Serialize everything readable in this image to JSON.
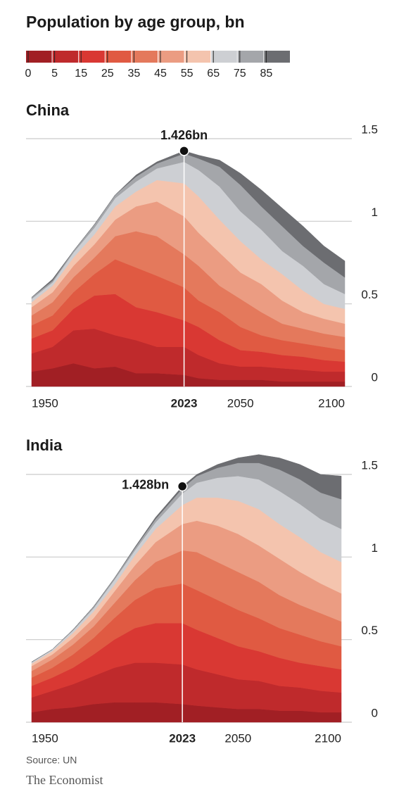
{
  "title": "Population by age group, bn",
  "legend_ticks": [
    0,
    5,
    15,
    25,
    35,
    45,
    55,
    65,
    75,
    85
  ],
  "source": "Source: UN",
  "brand": "The Economist",
  "chart_data": [
    {
      "type": "stacked-area",
      "title": "China",
      "x": [
        1950,
        1960,
        1970,
        1980,
        1990,
        2000,
        2010,
        2023,
        2030,
        2040,
        2050,
        2060,
        2070,
        2080,
        2090,
        2100
      ],
      "xlim": [
        1950,
        2100
      ],
      "xticks": [
        1950,
        2023,
        2050,
        2100
      ],
      "ylim": [
        0,
        1.5
      ],
      "yticks": [
        0,
        0.5,
        1.0,
        1.5
      ],
      "grid": true,
      "annotation": {
        "x": 2023,
        "value": 1.426,
        "label": "1.426bn"
      },
      "series": [
        {
          "color": "#a11f24",
          "values": [
            0.09,
            0.11,
            0.14,
            0.11,
            0.12,
            0.08,
            0.08,
            0.07,
            0.05,
            0.04,
            0.04,
            0.04,
            0.03,
            0.03,
            0.03,
            0.03
          ]
        },
        {
          "color": "#bf2a2c",
          "values": [
            0.11,
            0.13,
            0.2,
            0.24,
            0.19,
            0.2,
            0.16,
            0.17,
            0.14,
            0.1,
            0.08,
            0.08,
            0.08,
            0.07,
            0.06,
            0.06
          ]
        },
        {
          "color": "#d93833",
          "values": [
            0.09,
            0.1,
            0.13,
            0.2,
            0.25,
            0.2,
            0.21,
            0.16,
            0.17,
            0.14,
            0.1,
            0.09,
            0.08,
            0.08,
            0.07,
            0.06
          ]
        },
        {
          "color": "#e05a42",
          "values": [
            0.08,
            0.09,
            0.1,
            0.13,
            0.21,
            0.24,
            0.22,
            0.2,
            0.16,
            0.17,
            0.14,
            0.1,
            0.09,
            0.08,
            0.08,
            0.07
          ]
        },
        {
          "color": "#e4795c",
          "values": [
            0.06,
            0.08,
            0.09,
            0.1,
            0.14,
            0.22,
            0.24,
            0.2,
            0.21,
            0.16,
            0.17,
            0.14,
            0.1,
            0.09,
            0.08,
            0.08
          ]
        },
        {
          "color": "#eb9c82",
          "values": [
            0.05,
            0.06,
            0.07,
            0.08,
            0.1,
            0.15,
            0.21,
            0.23,
            0.2,
            0.2,
            0.16,
            0.17,
            0.14,
            0.1,
            0.09,
            0.08
          ]
        },
        {
          "color": "#f4c4ae",
          "values": [
            0.03,
            0.04,
            0.05,
            0.06,
            0.08,
            0.09,
            0.13,
            0.2,
            0.22,
            0.2,
            0.19,
            0.15,
            0.16,
            0.13,
            0.09,
            0.09
          ]
        },
        {
          "color": "#cdcfd3",
          "values": [
            0.02,
            0.02,
            0.03,
            0.04,
            0.05,
            0.06,
            0.07,
            0.13,
            0.16,
            0.2,
            0.18,
            0.18,
            0.14,
            0.15,
            0.12,
            0.09
          ]
        },
        {
          "color": "#a4a6aa",
          "values": [
            0.01,
            0.01,
            0.01,
            0.02,
            0.02,
            0.03,
            0.03,
            0.05,
            0.07,
            0.12,
            0.16,
            0.14,
            0.15,
            0.12,
            0.13,
            0.1
          ]
        },
        {
          "color": "#6c6d71",
          "values": [
            0.0,
            0.01,
            0.0,
            0.0,
            0.0,
            0.01,
            0.01,
            0.016,
            0.02,
            0.04,
            0.07,
            0.1,
            0.11,
            0.12,
            0.1,
            0.1
          ]
        }
      ]
    },
    {
      "type": "stacked-area",
      "title": "India",
      "x": [
        1950,
        1960,
        1970,
        1980,
        1990,
        2000,
        2010,
        2023,
        2030,
        2040,
        2050,
        2060,
        2070,
        2080,
        2090,
        2100
      ],
      "xlim": [
        1950,
        2100
      ],
      "xticks": [
        1950,
        2023,
        2050,
        2100
      ],
      "ylim": [
        0,
        1.5
      ],
      "yticks": [
        0,
        0.5,
        1.0,
        1.5
      ],
      "grid": true,
      "annotation": {
        "x": 2023,
        "value": 1.428,
        "label": "1.428bn"
      },
      "series": [
        {
          "color": "#a11f24",
          "values": [
            0.06,
            0.08,
            0.09,
            0.11,
            0.12,
            0.12,
            0.12,
            0.11,
            0.1,
            0.09,
            0.08,
            0.08,
            0.07,
            0.07,
            0.06,
            0.06
          ]
        },
        {
          "color": "#bf2a2c",
          "values": [
            0.09,
            0.11,
            0.14,
            0.17,
            0.21,
            0.24,
            0.24,
            0.24,
            0.22,
            0.2,
            0.18,
            0.17,
            0.15,
            0.14,
            0.13,
            0.12
          ]
        },
        {
          "color": "#d93833",
          "values": [
            0.07,
            0.08,
            0.1,
            0.13,
            0.17,
            0.21,
            0.24,
            0.25,
            0.24,
            0.22,
            0.2,
            0.18,
            0.17,
            0.15,
            0.15,
            0.14
          ]
        },
        {
          "color": "#e05a42",
          "values": [
            0.05,
            0.06,
            0.08,
            0.1,
            0.13,
            0.17,
            0.21,
            0.24,
            0.24,
            0.23,
            0.22,
            0.2,
            0.18,
            0.17,
            0.15,
            0.14
          ]
        },
        {
          "color": "#e4795c",
          "values": [
            0.04,
            0.05,
            0.06,
            0.07,
            0.09,
            0.12,
            0.16,
            0.2,
            0.23,
            0.23,
            0.23,
            0.22,
            0.2,
            0.18,
            0.17,
            0.15
          ]
        },
        {
          "color": "#eb9c82",
          "values": [
            0.03,
            0.03,
            0.04,
            0.05,
            0.07,
            0.09,
            0.12,
            0.16,
            0.19,
            0.22,
            0.23,
            0.22,
            0.22,
            0.2,
            0.18,
            0.17
          ]
        },
        {
          "color": "#f4c4ae",
          "values": [
            0.015,
            0.02,
            0.03,
            0.04,
            0.04,
            0.06,
            0.08,
            0.115,
            0.14,
            0.17,
            0.2,
            0.22,
            0.21,
            0.21,
            0.19,
            0.19
          ]
        },
        {
          "color": "#cdcfd3",
          "values": [
            0.008,
            0.01,
            0.015,
            0.02,
            0.03,
            0.03,
            0.04,
            0.07,
            0.09,
            0.12,
            0.15,
            0.18,
            0.2,
            0.2,
            0.2,
            0.2
          ]
        },
        {
          "color": "#a4a6aa",
          "values": [
            0.002,
            0.0,
            0.005,
            0.01,
            0.01,
            0.015,
            0.02,
            0.03,
            0.04,
            0.06,
            0.08,
            0.1,
            0.13,
            0.15,
            0.16,
            0.18
          ]
        },
        {
          "color": "#6c6d71",
          "values": [
            0.0,
            0.0,
            0.0,
            0.0,
            0.0,
            0.005,
            0.01,
            0.013,
            0.01,
            0.02,
            0.03,
            0.05,
            0.07,
            0.09,
            0.11,
            0.14
          ]
        }
      ]
    }
  ]
}
